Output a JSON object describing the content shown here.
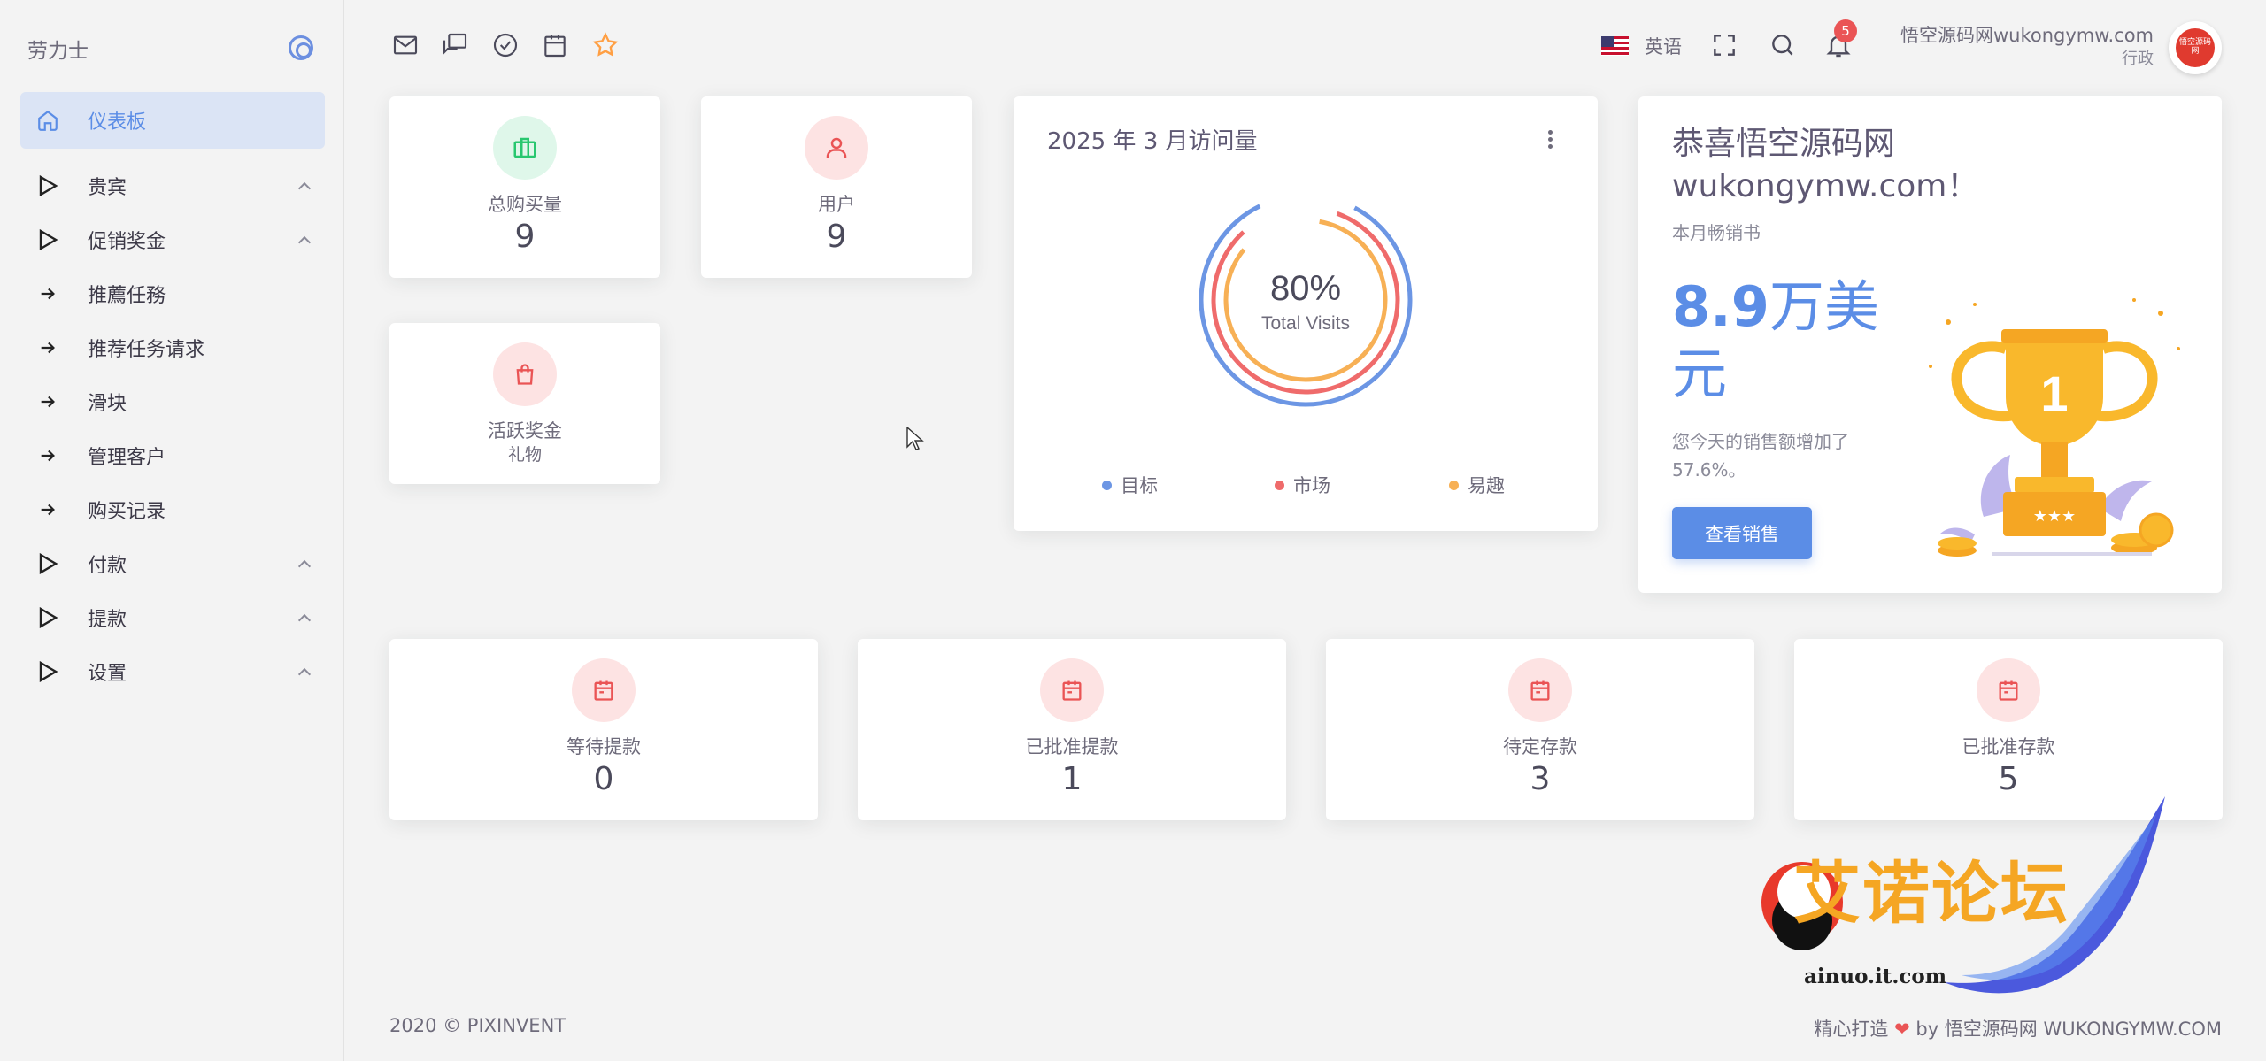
{
  "sidebar": {
    "brand": "劳力士",
    "items": [
      {
        "label": "仪表板",
        "icon": "home-icon",
        "active": true
      },
      {
        "label": "贵宾",
        "icon": "play-outline-icon",
        "expandable": true
      },
      {
        "label": "促销奖金",
        "icon": "play-outline-icon",
        "expandable": true
      },
      {
        "label": "推薦任務",
        "icon": "arrow-right-icon"
      },
      {
        "label": "推荐任务请求",
        "icon": "arrow-right-icon"
      },
      {
        "label": "滑块",
        "icon": "arrow-right-icon"
      },
      {
        "label": "管理客户",
        "icon": "arrow-right-icon"
      },
      {
        "label": "购买记录",
        "icon": "arrow-right-icon"
      },
      {
        "label": "付款",
        "icon": "play-outline-icon",
        "expandable": true
      },
      {
        "label": "提款",
        "icon": "play-outline-icon",
        "expandable": true
      },
      {
        "label": "设置",
        "icon": "play-outline-icon",
        "expandable": true
      }
    ]
  },
  "topbar": {
    "shortcuts": [
      "mail-icon",
      "chat-icon",
      "check-circle-icon",
      "calendar-icon",
      "star-icon"
    ],
    "language": "英语",
    "notification_count": "5",
    "user_name": "悟空源码网wukongymw.com",
    "user_role": "行政",
    "avatar_text": "悟空源码网"
  },
  "stats_top": [
    {
      "label": "总购买量",
      "value": "9",
      "icon": "briefcase-icon",
      "color": "#28c76f"
    },
    {
      "label": "用户",
      "value": "9",
      "icon": "user-icon",
      "color": "#ea5455"
    }
  ],
  "stat_bonus": {
    "label": "活跃奖金",
    "sub": "礼物",
    "icon": "shopping-bag-icon",
    "color": "#ea5455"
  },
  "chart_card": {
    "title": "2025 年 3 月访问量",
    "center_value": "80%",
    "center_label": "Total Visits"
  },
  "chart_data": {
    "type": "radialBar",
    "series": [
      {
        "name": "目标",
        "color": "#6c96e4"
      },
      {
        "name": "市场",
        "color": "#ef6b6b"
      },
      {
        "name": "易趣",
        "color": "#f7b055"
      }
    ],
    "center_value": 80
  },
  "congrats": {
    "title_line1": "恭喜悟空源码网",
    "title_line2": "wukongymw.com！",
    "subtitle": "本月畅销书",
    "amount_number": "8.9",
    "amount_unit": "万美元",
    "increase_text": "您今天的销售额增加了57.6%。",
    "button": "查看销售"
  },
  "stats_bottom": [
    {
      "label": "等待提款",
      "value": "0"
    },
    {
      "label": "已批准提款",
      "value": "1"
    },
    {
      "label": "待定存款",
      "value": "3"
    },
    {
      "label": "已批准存款",
      "value": "5"
    }
  ],
  "footer": {
    "left": "2020 © PIXINVENT",
    "right_prefix": "精心打造",
    "right_suffix": "by 悟空源码网 WUKONGYMW.COM"
  },
  "watermark": {
    "text": "艾诺论坛",
    "url": "ainuo.it.com"
  },
  "colors": {
    "primary": "#5b8de6",
    "danger": "#ea5455",
    "success": "#28c76f",
    "warning": "#ff9f43"
  }
}
